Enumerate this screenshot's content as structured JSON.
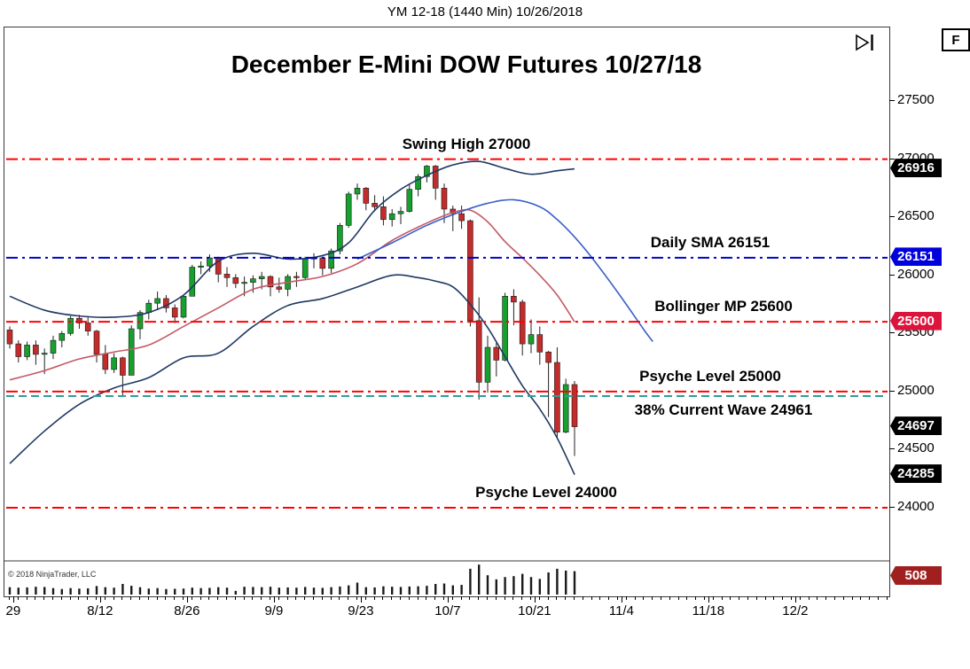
{
  "header": {
    "title": "YM 12-18 (1440 Min)  10/26/2018"
  },
  "toolbar": {
    "f_button_label": "F",
    "go_to_end_icon": "skip-to-latest"
  },
  "footer": {
    "copyright": "© 2018 NinjaTrader, LLC"
  },
  "chart_data": {
    "type": "candlestick",
    "title": "December E-Mini DOW Futures 10/27/18",
    "symbol": "YM 12-18",
    "interval": "1440 Min",
    "session_date": "10/26/2018",
    "price_axis": {
      "ticks": [
        27500,
        27000,
        26500,
        26000,
        25500,
        25000,
        24500,
        24000
      ],
      "visible_range": [
        23550,
        28133
      ]
    },
    "time_axis": {
      "labels": [
        "29",
        "8/12",
        "8/26",
        "9/9",
        "9/23",
        "10/7",
        "10/21",
        "11/4",
        "11/18",
        "12/2"
      ],
      "sunday_indices": [
        0.5,
        10.5,
        20.5,
        30.5,
        40.5,
        50.5,
        60.5,
        70.5,
        80.5,
        90.5
      ]
    },
    "candles_columns": [
      "date",
      "open",
      "high",
      "low",
      "close",
      "volume"
    ],
    "candles": [
      [
        "7/27",
        25530,
        25560,
        25370,
        25410,
        160
      ],
      [
        "7/30",
        25410,
        25440,
        25250,
        25300,
        150
      ],
      [
        "7/31",
        25300,
        25430,
        25270,
        25400,
        155
      ],
      [
        "8/1",
        25400,
        25440,
        25230,
        25320,
        170
      ],
      [
        "8/2",
        25320,
        25370,
        25150,
        25330,
        165
      ],
      [
        "8/3",
        25330,
        25480,
        25280,
        25440,
        140
      ],
      [
        "8/6",
        25440,
        25520,
        25380,
        25500,
        120
      ],
      [
        "8/7",
        25500,
        25650,
        25480,
        25630,
        140
      ],
      [
        "8/8",
        25630,
        25660,
        25540,
        25590,
        130
      ],
      [
        "8/9",
        25590,
        25640,
        25480,
        25520,
        135
      ],
      [
        "8/10",
        25520,
        25530,
        25250,
        25320,
        185
      ],
      [
        "8/13",
        25320,
        25400,
        25150,
        25190,
        160
      ],
      [
        "8/14",
        25190,
        25330,
        25160,
        25290,
        150
      ],
      [
        "8/15",
        25290,
        25300,
        24960,
        25140,
        230
      ],
      [
        "8/16",
        25140,
        25570,
        25140,
        25540,
        190
      ],
      [
        "8/17",
        25540,
        25700,
        25450,
        25680,
        160
      ],
      [
        "8/20",
        25680,
        25790,
        25620,
        25760,
        130
      ],
      [
        "8/21",
        25760,
        25860,
        25700,
        25800,
        140
      ],
      [
        "8/22",
        25800,
        25830,
        25680,
        25720,
        120
      ],
      [
        "8/23",
        25720,
        25750,
        25590,
        25640,
        125
      ],
      [
        "8/24",
        25640,
        25830,
        25630,
        25820,
        130
      ],
      [
        "8/27",
        25820,
        26090,
        25820,
        26070,
        150
      ],
      [
        "8/28",
        26070,
        26120,
        26010,
        26080,
        140
      ],
      [
        "8/29",
        26080,
        26180,
        26030,
        26150,
        145
      ],
      [
        "8/30",
        26150,
        26160,
        25940,
        26010,
        160
      ],
      [
        "8/31",
        26010,
        26070,
        25900,
        25980,
        150
      ],
      [
        "9/3",
        25980,
        26010,
        25890,
        25930,
        80
      ],
      [
        "9/4",
        25930,
        25990,
        25820,
        25940,
        170
      ],
      [
        "9/5",
        25940,
        26000,
        25850,
        25970,
        165
      ],
      [
        "9/6",
        25970,
        26030,
        25880,
        25990,
        160
      ],
      [
        "9/7",
        25990,
        26000,
        25820,
        25900,
        170
      ],
      [
        "9/10",
        25900,
        25980,
        25850,
        25880,
        150
      ],
      [
        "9/11",
        25880,
        26010,
        25820,
        25990,
        155
      ],
      [
        "9/12",
        25990,
        26030,
        25900,
        25980,
        150
      ],
      [
        "9/13",
        25980,
        26160,
        25960,
        26140,
        165
      ],
      [
        "9/14",
        26140,
        26190,
        26060,
        26150,
        150
      ],
      [
        "9/17",
        26150,
        26160,
        26000,
        26060,
        145
      ],
      [
        "9/18",
        26060,
        26230,
        26020,
        26210,
        160
      ],
      [
        "9/19",
        26210,
        26450,
        26180,
        26430,
        175
      ],
      [
        "9/20",
        26430,
        26720,
        26410,
        26700,
        200
      ],
      [
        "9/21",
        26700,
        26790,
        26650,
        26750,
        260
      ],
      [
        "9/24",
        26750,
        26760,
        26560,
        26620,
        160
      ],
      [
        "9/25",
        26620,
        26690,
        26550,
        26590,
        155
      ],
      [
        "9/26",
        26590,
        26680,
        26430,
        26480,
        180
      ],
      [
        "9/27",
        26480,
        26570,
        26420,
        26530,
        170
      ],
      [
        "9/28",
        26530,
        26590,
        26440,
        26550,
        165
      ],
      [
        "10/1",
        26550,
        26780,
        26540,
        26740,
        175
      ],
      [
        "10/2",
        26740,
        26870,
        26680,
        26850,
        180
      ],
      [
        "10/3",
        26850,
        26950,
        26800,
        26940,
        190
      ],
      [
        "10/4",
        26940,
        26950,
        26650,
        26750,
        230
      ],
      [
        "10/5",
        26750,
        26790,
        26450,
        26570,
        240
      ],
      [
        "10/8",
        26570,
        26600,
        26380,
        26530,
        200
      ],
      [
        "10/9",
        26530,
        26600,
        26400,
        26470,
        210
      ],
      [
        "10/10",
        26470,
        26480,
        25560,
        25610,
        560
      ],
      [
        "10/11",
        25610,
        25810,
        24930,
        25080,
        650
      ],
      [
        "10/12",
        25080,
        25480,
        24990,
        25380,
        420
      ],
      [
        "10/15",
        25380,
        25420,
        25130,
        25270,
        330
      ],
      [
        "10/16",
        25270,
        25850,
        25260,
        25820,
        380
      ],
      [
        "10/17",
        25820,
        25880,
        25570,
        25770,
        400
      ],
      [
        "10/18",
        25770,
        25790,
        25310,
        25410,
        450
      ],
      [
        "10/19",
        25410,
        25620,
        25330,
        25490,
        380
      ],
      [
        "10/22",
        25490,
        25560,
        25230,
        25340,
        340
      ],
      [
        "10/23",
        25340,
        25350,
        24780,
        25250,
        480
      ],
      [
        "10/24",
        25250,
        25380,
        24600,
        24650,
        560
      ],
      [
        "10/25",
        24650,
        25110,
        24640,
        25060,
        520
      ],
      [
        "10/26",
        25060,
        25090,
        24445,
        24697,
        508
      ]
    ],
    "overlays": {
      "bollinger_upper": [
        [
          0,
          25820
        ],
        [
          4,
          25700
        ],
        [
          8,
          25650
        ],
        [
          12,
          25640
        ],
        [
          16,
          25680
        ],
        [
          20,
          25830
        ],
        [
          24,
          26120
        ],
        [
          28,
          26190
        ],
        [
          32,
          26140
        ],
        [
          36,
          26170
        ],
        [
          39,
          26280
        ],
        [
          42,
          26560
        ],
        [
          45,
          26740
        ],
        [
          48,
          26860
        ],
        [
          51,
          26950
        ],
        [
          54,
          26980
        ],
        [
          57,
          26920
        ],
        [
          60,
          26870
        ],
        [
          63,
          26900
        ],
        [
          65,
          26916
        ]
      ],
      "bollinger_mid": [
        [
          0,
          25100
        ],
        [
          4,
          25180
        ],
        [
          8,
          25280
        ],
        [
          12,
          25340
        ],
        [
          16,
          25400
        ],
        [
          20,
          25560
        ],
        [
          24,
          25720
        ],
        [
          28,
          25880
        ],
        [
          32,
          25940
        ],
        [
          36,
          25990
        ],
        [
          40,
          26100
        ],
        [
          44,
          26300
        ],
        [
          48,
          26450
        ],
        [
          51,
          26540
        ],
        [
          53,
          26560
        ],
        [
          55,
          26460
        ],
        [
          57,
          26290
        ],
        [
          59,
          26150
        ],
        [
          61,
          26000
        ],
        [
          63,
          25830
        ],
        [
          65,
          25600
        ]
      ],
      "bollinger_lower": [
        [
          0,
          24380
        ],
        [
          4,
          24660
        ],
        [
          8,
          24890
        ],
        [
          12,
          25030
        ],
        [
          16,
          25120
        ],
        [
          20,
          25290
        ],
        [
          24,
          25330
        ],
        [
          28,
          25560
        ],
        [
          32,
          25740
        ],
        [
          36,
          25800
        ],
        [
          40,
          25900
        ],
        [
          44,
          26000
        ],
        [
          47,
          25980
        ],
        [
          49,
          25950
        ],
        [
          51,
          25900
        ],
        [
          53,
          25750
        ],
        [
          55,
          25550
        ],
        [
          57,
          25300
        ],
        [
          59,
          25050
        ],
        [
          61,
          24850
        ],
        [
          63,
          24600
        ],
        [
          65,
          24285
        ]
      ],
      "daily_sma": [
        [
          40,
          26140
        ],
        [
          44,
          26280
        ],
        [
          48,
          26430
        ],
        [
          52,
          26550
        ],
        [
          55,
          26620
        ],
        [
          58,
          26650
        ],
        [
          61,
          26590
        ],
        [
          63,
          26480
        ],
        [
          65,
          26330
        ],
        [
          67,
          26151
        ],
        [
          70,
          25850
        ],
        [
          73,
          25530
        ],
        [
          74,
          25430
        ]
      ]
    },
    "annotations": [
      {
        "label": "Swing High 27000",
        "value": 27000,
        "color": "#FF0000",
        "style": "dash-dot",
        "label_x": 521,
        "label_side": "above"
      },
      {
        "label": "Daily SMA 26151",
        "value": 26151,
        "color": "#0000C8",
        "style": "dash-dot",
        "label_x": 796,
        "label_side": "above"
      },
      {
        "label": "Bollinger MP 25600",
        "value": 25600,
        "color": "#FF0000",
        "style": "dash-dot",
        "label_x": 811,
        "label_side": "above"
      },
      {
        "label": "Psyche Level 25000",
        "value": 25000,
        "color": "#FF0000",
        "style": "dash-dot",
        "label_x": 796,
        "label_side": "above"
      },
      {
        "label": "38% Current Wave 24961",
        "value": 24961,
        "color": "#2E9E96",
        "style": "dash",
        "label_x": 811,
        "label_side": "below"
      },
      {
        "label": "Psyche Level 24000",
        "value": 24000,
        "color": "#FF0000",
        "style": "dash-dot",
        "label_x": 611,
        "label_side": "above"
      }
    ],
    "price_badges": [
      {
        "text": "26916",
        "value": 26916,
        "bg": "#000000"
      },
      {
        "text": "26151",
        "value": 26151,
        "bg": "#0000DC"
      },
      {
        "text": "25600",
        "value": 25600,
        "bg": "#DC143C"
      },
      {
        "text": "24697",
        "value": 24697,
        "bg": "#000000"
      },
      {
        "text": "24285",
        "value": 24285,
        "bg": "#000000"
      }
    ],
    "volume_badge": {
      "text": "508",
      "bg": "#A02020"
    },
    "colors": {
      "up": "#17A02E",
      "down": "#C42B2B",
      "wick": "#222222",
      "band": "#1F3864",
      "mid_band": "#C45A66",
      "sma": "#3A5FC8",
      "annotation_red": "#FF0000",
      "annotation_blue": "#0000C8",
      "annotation_teal": "#2E9E96",
      "volume": "#1A1A1A"
    }
  }
}
